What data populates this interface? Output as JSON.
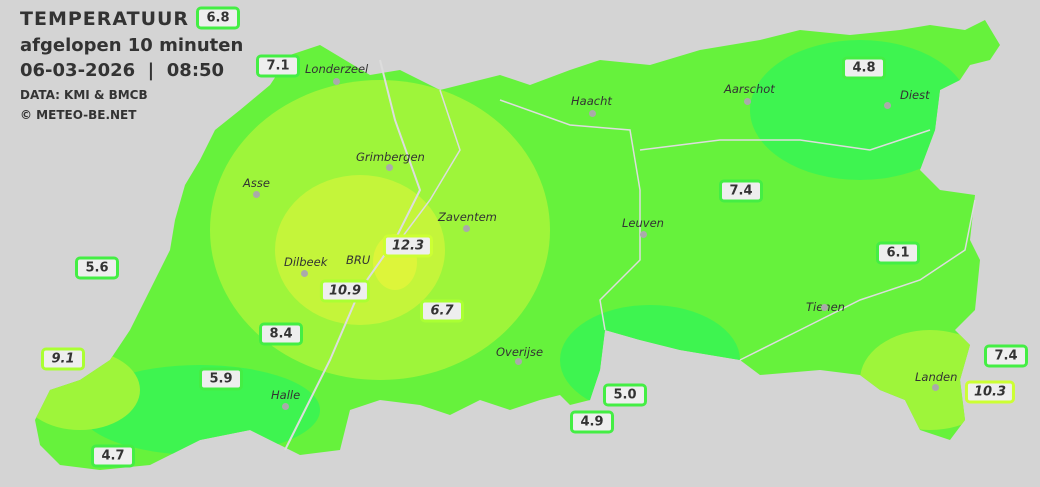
{
  "header": {
    "title": "TEMPERATUUR",
    "subtitle": "afgelopen 10 minuten",
    "datetime": "06-03-2026  |  08:50",
    "source": "DATA: KMI & BMCB",
    "copyright": "© METEO-BE.NET"
  },
  "colors": {
    "background": "#d4d4d4",
    "base_green": "#66f23c",
    "cool_green": "#3ef450",
    "warm_green": "#9ef53a",
    "yellow_green": "#c4f53a"
  },
  "cities": [
    {
      "name": "Londerzeel"
    },
    {
      "name": "Haacht"
    },
    {
      "name": "Aarschot"
    },
    {
      "name": "Diest"
    },
    {
      "name": "Grimbergen"
    },
    {
      "name": "Asse"
    },
    {
      "name": "Zaventem"
    },
    {
      "name": "Leuven"
    },
    {
      "name": "Dilbeek"
    },
    {
      "name": "BRU"
    },
    {
      "name": "Tienen"
    },
    {
      "name": "Overijse"
    },
    {
      "name": "Halle"
    },
    {
      "name": "Landen"
    }
  ],
  "stations": [
    {
      "value": "6.8"
    },
    {
      "value": "7.1"
    },
    {
      "value": "4.8"
    },
    {
      "value": "7.4"
    },
    {
      "value": "6.1"
    },
    {
      "value": "5.6"
    },
    {
      "value": "12.3"
    },
    {
      "value": "10.9"
    },
    {
      "value": "6.7"
    },
    {
      "value": "8.4"
    },
    {
      "value": "9.1"
    },
    {
      "value": "5.9"
    },
    {
      "value": "5.0"
    },
    {
      "value": "4.9"
    },
    {
      "value": "4.7"
    },
    {
      "value": "7.4"
    },
    {
      "value": "10.3"
    }
  ]
}
